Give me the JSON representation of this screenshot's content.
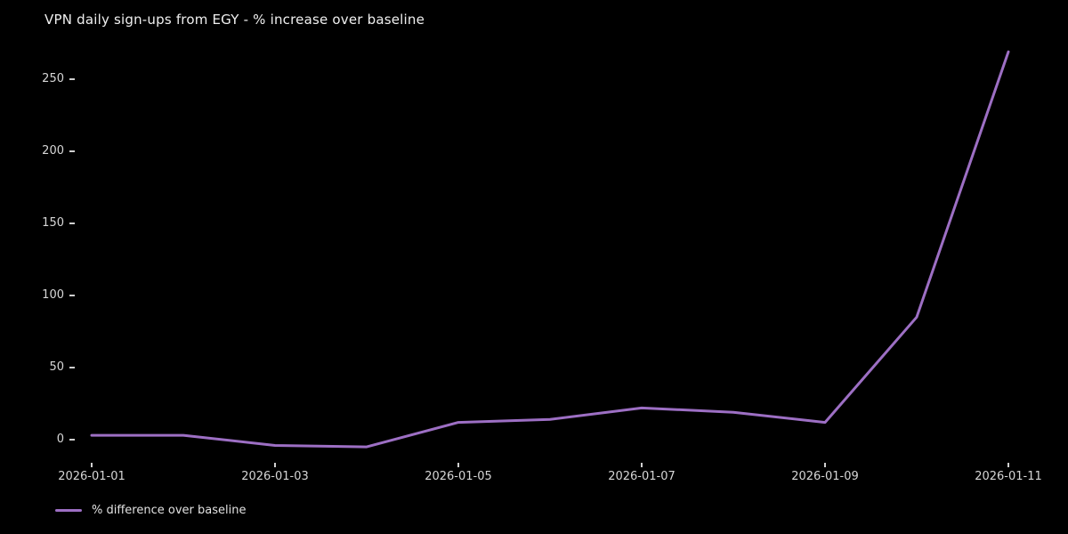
{
  "title": "VPN daily sign-ups from EGY - % increase over baseline",
  "colors": {
    "background": "#000000",
    "line": "#9d6fc4",
    "title_text": "#f0f0f0",
    "tick_text": "#d6d6d6",
    "tick_mark": "#cfcfcf"
  },
  "legend": {
    "label": "% difference over baseline"
  },
  "chart_data": {
    "type": "line",
    "title": "VPN daily sign-ups from EGY - % increase over baseline",
    "categories": [
      "2026-01-01",
      "2026-01-02",
      "2026-01-03",
      "2026-01-04",
      "2026-01-05",
      "2026-01-06",
      "2026-01-07",
      "2026-01-08",
      "2026-01-09",
      "2026-01-10",
      "2026-01-11"
    ],
    "series": [
      {
        "name": "% difference over baseline",
        "values": [
          3,
          3,
          -4,
          -5,
          12,
          14,
          22,
          19,
          12,
          85,
          269
        ]
      }
    ],
    "xlabel": "",
    "ylabel": "",
    "yticks": [
      0,
      50,
      100,
      150,
      200,
      250
    ],
    "xticks": {
      "labels": [
        "2026-01-01",
        "2026-01-03",
        "2026-01-05",
        "2026-01-07",
        "2026-01-09",
        "2026-01-11"
      ],
      "indices": [
        0,
        2,
        4,
        6,
        8,
        10
      ]
    },
    "ylim": [
      -10,
      275
    ],
    "grid": false,
    "legend_position": "lower-left-outside",
    "background": "dark"
  }
}
